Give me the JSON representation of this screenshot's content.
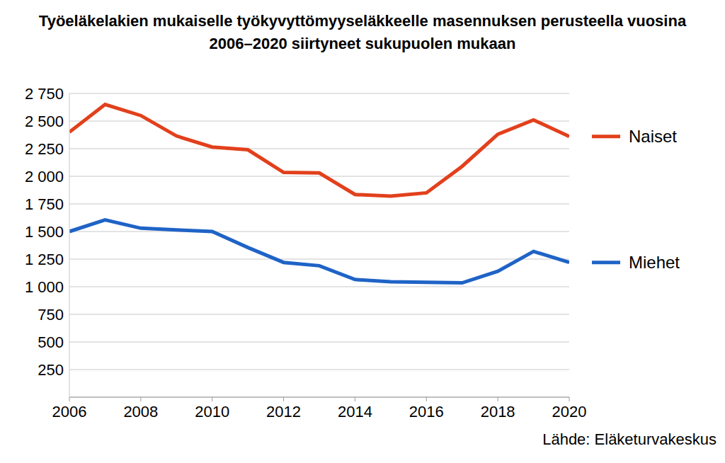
{
  "chart_data": {
    "type": "line",
    "title": "Työeläkelakien mukaiselle työkyvyttömyyseläkkeelle masennuksen perusteella vuosina 2006–2020 siirtyneet sukupuolen mukaan",
    "source": "Lähde: Eläketurvakeskus",
    "x": [
      2006,
      2007,
      2008,
      2009,
      2010,
      2011,
      2012,
      2013,
      2014,
      2015,
      2016,
      2017,
      2018,
      2019,
      2020
    ],
    "series": [
      {
        "name": "Naiset",
        "color": "#e2401c",
        "values": [
          2400,
          2650,
          2550,
          2365,
          2265,
          2240,
          2035,
          2030,
          1835,
          1820,
          1850,
          2090,
          2380,
          2510,
          2360
        ]
      },
      {
        "name": "Miehet",
        "color": "#1f63c6",
        "values": [
          1500,
          1605,
          1530,
          1515,
          1500,
          1355,
          1220,
          1190,
          1065,
          1045,
          1040,
          1035,
          1140,
          1320,
          1220
        ]
      }
    ],
    "xlim": [
      2006,
      2020
    ],
    "xticks": [
      2006,
      2008,
      2010,
      2012,
      2014,
      2016,
      2018,
      2020
    ],
    "ylim": [
      0,
      2750
    ],
    "yticks": [
      250,
      500,
      750,
      {
        "value": 1000,
        "label": "1 000"
      },
      {
        "value": 1250,
        "label": "1 250"
      },
      {
        "value": 1500,
        "label": "1 500"
      },
      {
        "value": 1750,
        "label": "1 750"
      },
      {
        "value": 2000,
        "label": "2 000"
      },
      {
        "value": 2250,
        "label": "2 250"
      },
      {
        "value": 2500,
        "label": "2 500"
      },
      {
        "value": 2750,
        "label": "2 750"
      }
    ],
    "grid": true
  }
}
